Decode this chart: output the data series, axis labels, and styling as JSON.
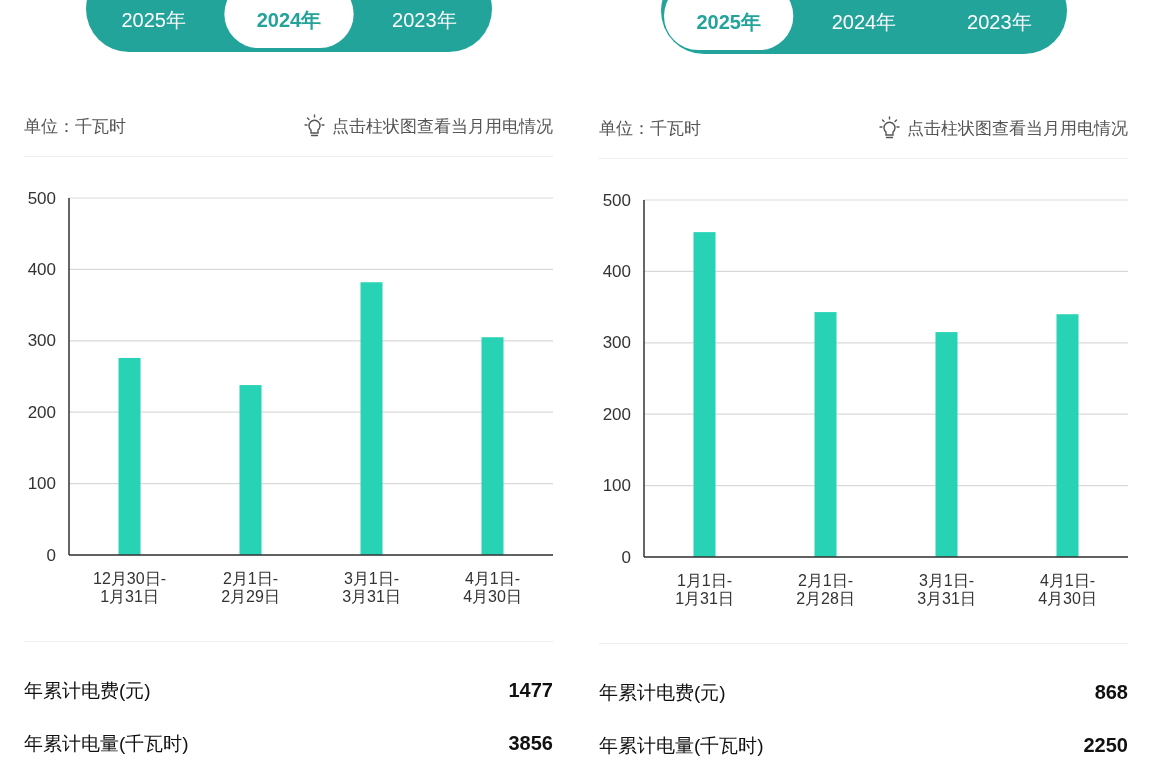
{
  "chart_data": [
    {
      "type": "bar",
      "title": "2024年",
      "ylabel": "单位：千瓦时",
      "categories": [
        "12月30日-\n1月31日",
        "2月1日-\n2月29日",
        "3月1日-\n3月31日",
        "4月1日-\n4月30日"
      ],
      "values": [
        276,
        238,
        382,
        305
      ],
      "color": "#27d3b4",
      "ylim": [
        0,
        500
      ],
      "yticks": [
        0,
        100,
        200,
        300,
        400,
        500
      ],
      "grid": "y",
      "annotations": [
        "2025年",
        null,
        "2023年",
        "点击柱状图查看当月用电情况",
        "年累计电费(元)",
        "1477",
        "年累计电量(千瓦时)",
        "3856"
      ]
    },
    {
      "type": "bar",
      "title": "2025年",
      "ylabel": "单位：千瓦时",
      "categories": [
        "1月1日-\n1月31日",
        "2月1日-\n2月28日",
        "3月1日-\n3月31日",
        "4月1日-\n4月30日"
      ],
      "values": [
        455,
        343,
        315,
        340
      ],
      "color": "#27d3b4",
      "ylim": [
        0,
        500
      ],
      "yticks": [
        0,
        100,
        200,
        300,
        400,
        500
      ],
      "grid": "y",
      "annotations": [
        null,
        "2024年",
        "2023年",
        "点击柱状图查看当月用电情况",
        "年累计电费(元)",
        "868",
        "年累计电量(千瓦时)",
        "2250"
      ]
    }
  ]
}
